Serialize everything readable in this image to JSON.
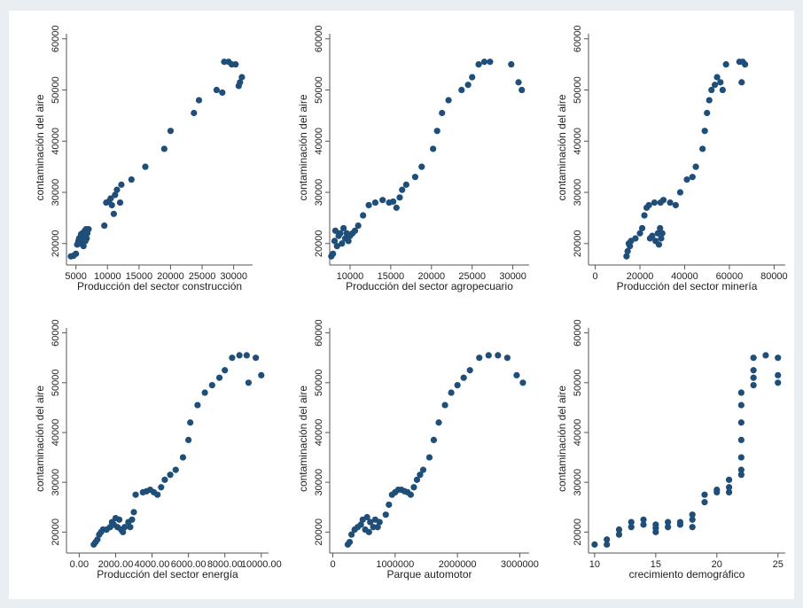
{
  "colors": {
    "figure_bg": "#e9eef2",
    "panel_bg": "#ffffff",
    "axis": "#555555",
    "marker": "#1f4e79"
  },
  "chart_data": [
    {
      "type": "scatter",
      "xlabel": "Producción del sector construcción",
      "ylabel": "contaminación del aire",
      "xlim": [
        3500,
        33000
      ],
      "ylim": [
        16500,
        61000
      ],
      "xticks": [
        "5000",
        "10000",
        "15000",
        "20000",
        "25000",
        "30000"
      ],
      "xtick_values": [
        5000,
        10000,
        15000,
        20000,
        25000,
        30000
      ],
      "yticks": [
        "20000",
        "30000",
        "40000",
        "50000",
        "60000"
      ],
      "ytick_values": [
        20000,
        30000,
        40000,
        50000,
        60000
      ],
      "points": [
        [
          4200,
          17500
        ],
        [
          4600,
          17600
        ],
        [
          5000,
          18000
        ],
        [
          5200,
          19800
        ],
        [
          5400,
          20500
        ],
        [
          5500,
          21000
        ],
        [
          5700,
          20000
        ],
        [
          5800,
          21800
        ],
        [
          6000,
          22000
        ],
        [
          6100,
          20800
        ],
        [
          6200,
          19500
        ],
        [
          6300,
          21500
        ],
        [
          6400,
          22500
        ],
        [
          6500,
          20500
        ],
        [
          6600,
          22800
        ],
        [
          6700,
          21000
        ],
        [
          6800,
          22000
        ],
        [
          7000,
          22800
        ],
        [
          9500,
          23500
        ],
        [
          9800,
          28000
        ],
        [
          10200,
          28200
        ],
        [
          10500,
          28800
        ],
        [
          10700,
          27500
        ],
        [
          11000,
          25800
        ],
        [
          11200,
          29500
        ],
        [
          11500,
          30500
        ],
        [
          12000,
          28000
        ],
        [
          12200,
          31500
        ],
        [
          13800,
          32500
        ],
        [
          16000,
          35000
        ],
        [
          19000,
          38500
        ],
        [
          20000,
          42000
        ],
        [
          23700,
          45500
        ],
        [
          24500,
          48000
        ],
        [
          27300,
          50000
        ],
        [
          28200,
          49500
        ],
        [
          28500,
          55500
        ],
        [
          29200,
          55500
        ],
        [
          29700,
          55000
        ],
        [
          30300,
          55000
        ],
        [
          30800,
          50800
        ],
        [
          31000,
          51500
        ],
        [
          31300,
          52500
        ]
      ]
    },
    {
      "type": "scatter",
      "xlabel": "Producción del sector agropecuario",
      "ylabel": "contaminación del aire",
      "xlim": [
        7500,
        32000
      ],
      "ylim": [
        16500,
        61000
      ],
      "xticks": [
        "10000",
        "15000",
        "20000",
        "25000",
        "30000"
      ],
      "xtick_values": [
        10000,
        15000,
        20000,
        25000,
        30000
      ],
      "yticks": [
        "20000",
        "30000",
        "40000",
        "50000",
        "60000"
      ],
      "ytick_values": [
        20000,
        30000,
        40000,
        50000,
        60000
      ],
      "points": [
        [
          7700,
          17500
        ],
        [
          7900,
          18000
        ],
        [
          8100,
          20500
        ],
        [
          8200,
          22500
        ],
        [
          8400,
          19500
        ],
        [
          8600,
          21500
        ],
        [
          8800,
          22000
        ],
        [
          9000,
          20000
        ],
        [
          9200,
          23000
        ],
        [
          9400,
          21000
        ],
        [
          9600,
          22000
        ],
        [
          9800,
          20500
        ],
        [
          10000,
          21500
        ],
        [
          10300,
          22000
        ],
        [
          10600,
          22500
        ],
        [
          11000,
          23500
        ],
        [
          11600,
          25500
        ],
        [
          12300,
          27500
        ],
        [
          13100,
          28000
        ],
        [
          14000,
          28500
        ],
        [
          14800,
          28000
        ],
        [
          15300,
          28200
        ],
        [
          15700,
          27000
        ],
        [
          16100,
          29000
        ],
        [
          16400,
          30500
        ],
        [
          16900,
          31500
        ],
        [
          18000,
          33000
        ],
        [
          18800,
          35000
        ],
        [
          20200,
          38500
        ],
        [
          20700,
          42000
        ],
        [
          21300,
          45500
        ],
        [
          22100,
          48000
        ],
        [
          23700,
          50000
        ],
        [
          24500,
          51000
        ],
        [
          25000,
          52500
        ],
        [
          25800,
          55000
        ],
        [
          26500,
          55500
        ],
        [
          27200,
          55500
        ],
        [
          29800,
          55000
        ],
        [
          30700,
          51500
        ],
        [
          31100,
          50000
        ]
      ]
    },
    {
      "type": "scatter",
      "xlabel": "Producción del sector minería",
      "ylabel": "contaminación del aire",
      "xlim": [
        -3000,
        85000
      ],
      "ylim": [
        16500,
        61000
      ],
      "xticks": [
        "0",
        "20000",
        "40000",
        "60000",
        "80000"
      ],
      "xtick_values": [
        0,
        20000,
        40000,
        60000,
        80000
      ],
      "yticks": [
        "20000",
        "30000",
        "40000",
        "50000",
        "60000"
      ],
      "ytick_values": [
        20000,
        30000,
        40000,
        50000,
        60000
      ],
      "points": [
        [
          14000,
          17500
        ],
        [
          14500,
          18500
        ],
        [
          15000,
          20000
        ],
        [
          15500,
          19500
        ],
        [
          16000,
          20500
        ],
        [
          18000,
          21000
        ],
        [
          20000,
          22000
        ],
        [
          21000,
          23000
        ],
        [
          22000,
          25500
        ],
        [
          23000,
          27000
        ],
        [
          24000,
          27500
        ],
        [
          24500,
          21000
        ],
        [
          25500,
          21500
        ],
        [
          26500,
          28000
        ],
        [
          27000,
          20500
        ],
        [
          28000,
          22000
        ],
        [
          29000,
          23000
        ],
        [
          29500,
          21000
        ],
        [
          30000,
          22000
        ],
        [
          29200,
          28000
        ],
        [
          28500,
          19800
        ],
        [
          30500,
          28500
        ],
        [
          33500,
          28000
        ],
        [
          36000,
          27500
        ],
        [
          38000,
          30000
        ],
        [
          41000,
          32500
        ],
        [
          43500,
          33000
        ],
        [
          45000,
          35000
        ],
        [
          48000,
          38500
        ],
        [
          49000,
          42000
        ],
        [
          50000,
          45500
        ],
        [
          51000,
          48000
        ],
        [
          52000,
          50000
        ],
        [
          53500,
          51000
        ],
        [
          54500,
          52500
        ],
        [
          56000,
          51500
        ],
        [
          57000,
          50000
        ],
        [
          58500,
          55000
        ],
        [
          64500,
          55500
        ],
        [
          66000,
          55500
        ],
        [
          67000,
          55000
        ],
        [
          65500,
          51500
        ]
      ]
    },
    {
      "type": "scatter",
      "xlabel": "Producción del sector energía",
      "ylabel": "contaminación del aire",
      "xlim": [
        -700,
        10400
      ],
      "ylim": [
        16500,
        61000
      ],
      "xticks": [
        "0.00",
        "2000.00",
        "4000.00",
        "6000.00",
        "8000.00",
        "10000.00"
      ],
      "xtick_values": [
        0,
        2000,
        4000,
        6000,
        8000,
        10000
      ],
      "yticks": [
        "20000",
        "30000",
        "40000",
        "50000",
        "60000"
      ],
      "ytick_values": [
        20000,
        30000,
        40000,
        50000,
        60000
      ],
      "points": [
        [
          800,
          17500
        ],
        [
          900,
          18000
        ],
        [
          1000,
          18500
        ],
        [
          1100,
          19500
        ],
        [
          1200,
          20000
        ],
        [
          1300,
          20500
        ],
        [
          1500,
          20500
        ],
        [
          1700,
          21000
        ],
        [
          1800,
          22000
        ],
        [
          1900,
          21500
        ],
        [
          2000,
          22800
        ],
        [
          2100,
          21000
        ],
        [
          2200,
          22500
        ],
        [
          2300,
          20500
        ],
        [
          2400,
          20000
        ],
        [
          2500,
          21000
        ],
        [
          2700,
          22000
        ],
        [
          2800,
          21000
        ],
        [
          2900,
          22500
        ],
        [
          3000,
          24000
        ],
        [
          3100,
          27500
        ],
        [
          3500,
          28000
        ],
        [
          3700,
          28200
        ],
        [
          3900,
          28500
        ],
        [
          4100,
          28000
        ],
        [
          4300,
          27500
        ],
        [
          4500,
          29000
        ],
        [
          4700,
          30500
        ],
        [
          5000,
          31500
        ],
        [
          5300,
          32500
        ],
        [
          5700,
          35000
        ],
        [
          6000,
          38500
        ],
        [
          6100,
          42000
        ],
        [
          6500,
          45500
        ],
        [
          6900,
          48000
        ],
        [
          7300,
          49500
        ],
        [
          7700,
          51000
        ],
        [
          8000,
          52500
        ],
        [
          8400,
          55000
        ],
        [
          8800,
          55500
        ],
        [
          9200,
          55500
        ],
        [
          9700,
          55000
        ],
        [
          9300,
          50000
        ],
        [
          10000,
          51500
        ]
      ]
    },
    {
      "type": "scatter",
      "xlabel": "Parque automotor",
      "ylabel": "contaminación del aire",
      "xlim": [
        -50000,
        3150000
      ],
      "ylim": [
        16500,
        61000
      ],
      "xticks": [
        "0",
        "1000000",
        "2000000",
        "3000000"
      ],
      "xtick_values": [
        0,
        1000000,
        2000000,
        3000000
      ],
      "yticks": [
        "20000",
        "30000",
        "40000",
        "50000",
        "60000"
      ],
      "ytick_values": [
        20000,
        30000,
        40000,
        50000,
        60000
      ],
      "points": [
        [
          240000,
          17500
        ],
        [
          270000,
          18000
        ],
        [
          300000,
          19500
        ],
        [
          350000,
          20500
        ],
        [
          400000,
          21000
        ],
        [
          450000,
          21500
        ],
        [
          480000,
          22500
        ],
        [
          520000,
          20500
        ],
        [
          550000,
          23000
        ],
        [
          580000,
          20000
        ],
        [
          600000,
          22000
        ],
        [
          650000,
          21000
        ],
        [
          680000,
          22500
        ],
        [
          720000,
          21000
        ],
        [
          750000,
          22000
        ],
        [
          850000,
          23500
        ],
        [
          900000,
          25500
        ],
        [
          950000,
          27500
        ],
        [
          1000000,
          28000
        ],
        [
          1050000,
          28500
        ],
        [
          1100000,
          28500
        ],
        [
          1150000,
          28200
        ],
        [
          1200000,
          28000
        ],
        [
          1250000,
          27500
        ],
        [
          1300000,
          29000
        ],
        [
          1350000,
          30500
        ],
        [
          1400000,
          31500
        ],
        [
          1450000,
          32500
        ],
        [
          1550000,
          35000
        ],
        [
          1620000,
          38500
        ],
        [
          1700000,
          42000
        ],
        [
          1800000,
          45500
        ],
        [
          1900000,
          48000
        ],
        [
          2000000,
          49500
        ],
        [
          2100000,
          51000
        ],
        [
          2200000,
          52500
        ],
        [
          2350000,
          55000
        ],
        [
          2500000,
          55500
        ],
        [
          2650000,
          55500
        ],
        [
          2800000,
          55000
        ],
        [
          2950000,
          51500
        ],
        [
          3050000,
          50000
        ]
      ]
    },
    {
      "type": "scatter",
      "xlabel": "crecimiento demográfico",
      "ylabel": "contaminación del aire",
      "xlim": [
        9.5,
        25.6
      ],
      "ylim": [
        16500,
        61000
      ],
      "xticks": [
        "10",
        "15",
        "20",
        "25"
      ],
      "xtick_values": [
        10,
        15,
        20,
        25
      ],
      "yticks": [
        "20000",
        "30000",
        "40000",
        "50000",
        "60000"
      ],
      "ytick_values": [
        20000,
        30000,
        40000,
        50000,
        60000
      ],
      "points": [
        [
          10,
          17500
        ],
        [
          11,
          17500
        ],
        [
          11,
          18500
        ],
        [
          12,
          19500
        ],
        [
          12,
          20500
        ],
        [
          13,
          21000
        ],
        [
          13,
          22000
        ],
        [
          14,
          21500
        ],
        [
          14,
          22500
        ],
        [
          15,
          20000
        ],
        [
          15,
          20800
        ],
        [
          15,
          21500
        ],
        [
          16,
          21000
        ],
        [
          16,
          22000
        ],
        [
          17,
          21500
        ],
        [
          17,
          22000
        ],
        [
          18,
          21000
        ],
        [
          18,
          22500
        ],
        [
          18,
          23500
        ],
        [
          19,
          26000
        ],
        [
          19,
          27500
        ],
        [
          20,
          28000
        ],
        [
          20,
          28500
        ],
        [
          21,
          28000
        ],
        [
          21,
          29000
        ],
        [
          21,
          30500
        ],
        [
          22,
          31500
        ],
        [
          22,
          32500
        ],
        [
          22,
          35000
        ],
        [
          22,
          38500
        ],
        [
          22,
          42000
        ],
        [
          22,
          45500
        ],
        [
          22,
          48000
        ],
        [
          23,
          49500
        ],
        [
          23,
          51000
        ],
        [
          23,
          52500
        ],
        [
          23,
          55000
        ],
        [
          24,
          55500
        ],
        [
          25,
          55000
        ],
        [
          25,
          51500
        ],
        [
          25,
          50000
        ]
      ]
    }
  ]
}
